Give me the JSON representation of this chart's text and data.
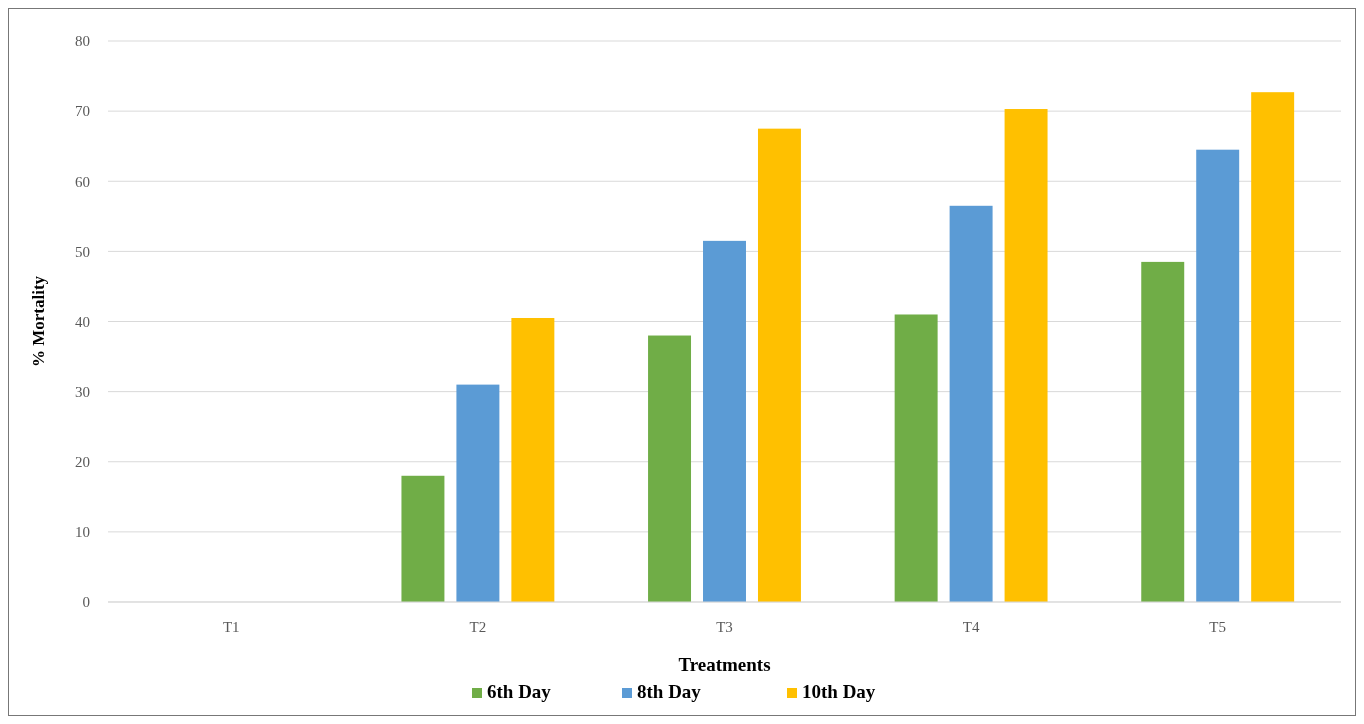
{
  "chart_data": {
    "type": "bar",
    "xlabel": "Treatments",
    "ylabel": "% Mortality",
    "categories": [
      "T1",
      "T2",
      "T3",
      "T4",
      "T5"
    ],
    "series": [
      {
        "name": "6th Day",
        "color": "#70ad47",
        "values": [
          0,
          18,
          38,
          41,
          48.5
        ]
      },
      {
        "name": "8th Day",
        "color": "#5b9bd5",
        "values": [
          0,
          31,
          51.5,
          56.5,
          64.5
        ]
      },
      {
        "name": "10th Day",
        "color": "#ffc000",
        "values": [
          0,
          40.5,
          67.5,
          70.3,
          72.7
        ]
      }
    ],
    "ylim": [
      0,
      80
    ],
    "yticks": [
      0,
      10,
      20,
      30,
      40,
      50,
      60,
      70,
      80
    ],
    "grid": "y",
    "legend": "bottom"
  }
}
